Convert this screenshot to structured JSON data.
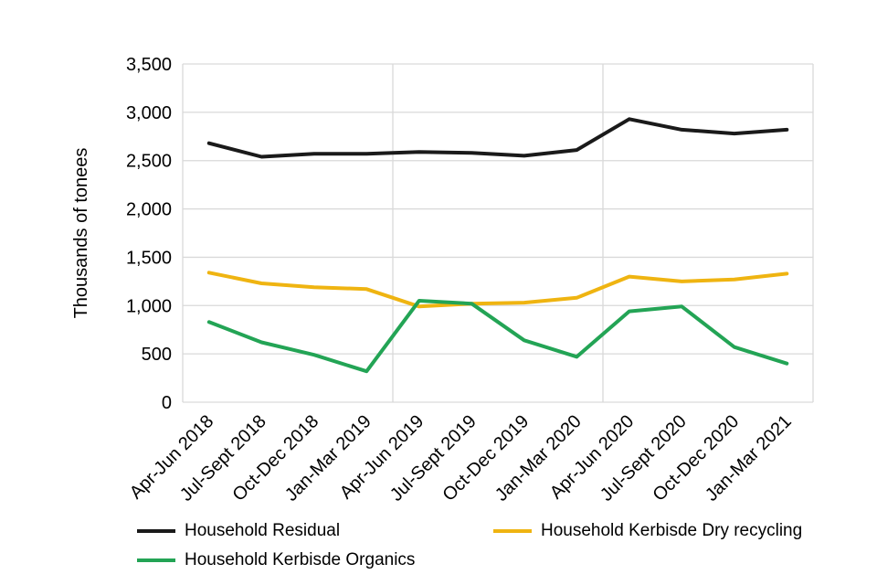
{
  "chart_data": {
    "type": "line",
    "title": "",
    "xlabel": "",
    "ylabel": "Thousands of tonees",
    "ylim": [
      0,
      3500
    ],
    "ytick_step": 500,
    "grid": {
      "horizontal": true,
      "vertical_year_boundaries": [
        0,
        4,
        8,
        12
      ]
    },
    "legend_position": "bottom",
    "categories": [
      "Apr-Jun 2018",
      "Jul-Sept 2018",
      "Oct-Dec 2018",
      "Jan-Mar 2019",
      "Apr-Jun 2019",
      "Jul-Sept 2019",
      "Oct-Dec 2019",
      "Jan-Mar 2020",
      "Apr-Jun 2020",
      "Jul-Sept 2020",
      "Oct-Dec 2020",
      "Jan-Mar 2021"
    ],
    "series": [
      {
        "name": "Household Residual",
        "color": "#1a1a1a",
        "values": [
          2680,
          2540,
          2570,
          2570,
          2590,
          2580,
          2550,
          2610,
          2930,
          2820,
          2780,
          2820
        ]
      },
      {
        "name": "Household Kerbisde Dry recycling",
        "color": "#efb411",
        "values": [
          1340,
          1230,
          1190,
          1170,
          990,
          1020,
          1030,
          1080,
          1300,
          1250,
          1270,
          1330
        ]
      },
      {
        "name": "Household Kerbisde Organics",
        "color": "#23a455",
        "values": [
          830,
          620,
          490,
          320,
          1050,
          1020,
          640,
          470,
          940,
          990,
          570,
          400
        ]
      }
    ],
    "colors": {
      "gridline": "#d9d9d9",
      "tick_text": "#000000"
    }
  }
}
